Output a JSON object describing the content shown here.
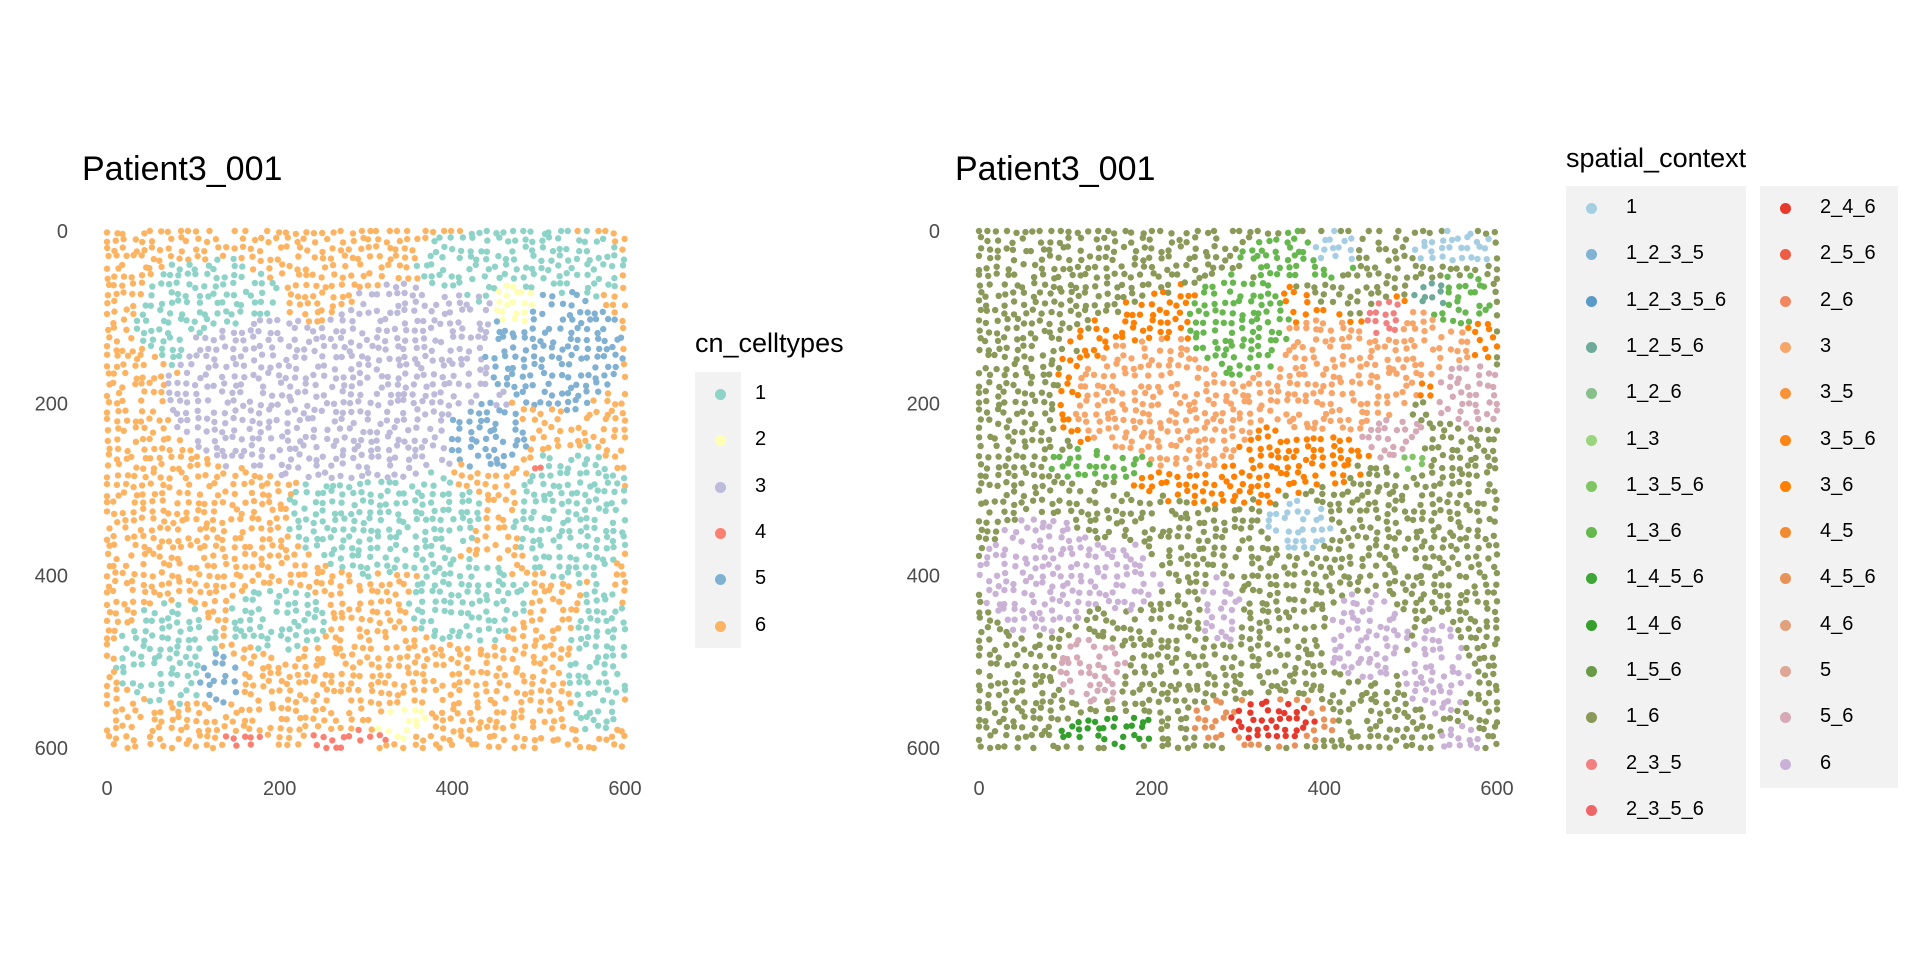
{
  "chart_data": [
    {
      "type": "scatter",
      "title": "Patient3_001",
      "xlabel": "",
      "ylabel": "",
      "xlim": [
        0,
        600
      ],
      "ylim": [
        600,
        0
      ],
      "y_reversed": true,
      "xticks": [
        "0",
        "200",
        "400",
        "600"
      ],
      "yticks": [
        "0",
        "200",
        "400",
        "600"
      ],
      "grid": false,
      "legend_title": "cn_celltypes",
      "legend_position": "right",
      "legend": [
        {
          "label": "1",
          "color": "#8DD3C7"
        },
        {
          "label": "2",
          "color": "#FFFFB3"
        },
        {
          "label": "3",
          "color": "#BEBADA"
        },
        {
          "label": "4",
          "color": "#FB8072"
        },
        {
          "label": "5",
          "color": "#80B1D3"
        },
        {
          "label": "6",
          "color": "#FDB462"
        }
      ],
      "regions": [
        {
          "category": "6",
          "shape": "rect",
          "cx": 300,
          "cy": 300,
          "rx": 300,
          "ry": 300
        },
        {
          "category": "1",
          "shape": "ellipse",
          "cx": 120,
          "cy": 100,
          "rx": 90,
          "ry": 70
        },
        {
          "category": "1",
          "shape": "ellipse",
          "cx": 480,
          "cy": 40,
          "rx": 120,
          "ry": 50
        },
        {
          "category": "1",
          "shape": "ellipse",
          "cx": 320,
          "cy": 330,
          "rx": 110,
          "ry": 70
        },
        {
          "category": "1",
          "shape": "ellipse",
          "cx": 540,
          "cy": 330,
          "rx": 70,
          "ry": 80
        },
        {
          "category": "1",
          "shape": "ellipse",
          "cx": 70,
          "cy": 490,
          "rx": 60,
          "ry": 60
        },
        {
          "category": "1",
          "shape": "ellipse",
          "cx": 420,
          "cy": 430,
          "rx": 70,
          "ry": 50
        },
        {
          "category": "1",
          "shape": "ellipse",
          "cx": 200,
          "cy": 450,
          "rx": 60,
          "ry": 40
        },
        {
          "category": "1",
          "shape": "ellipse",
          "cx": 570,
          "cy": 500,
          "rx": 35,
          "ry": 90
        },
        {
          "category": "3",
          "shape": "ellipse",
          "cx": 190,
          "cy": 190,
          "rx": 120,
          "ry": 90
        },
        {
          "category": "3",
          "shape": "ellipse",
          "cx": 360,
          "cy": 160,
          "rx": 120,
          "ry": 100
        },
        {
          "category": "3",
          "shape": "ellipse",
          "cx": 280,
          "cy": 250,
          "rx": 150,
          "ry": 40
        },
        {
          "category": "5",
          "shape": "ellipse",
          "cx": 520,
          "cy": 140,
          "rx": 80,
          "ry": 70
        },
        {
          "category": "5",
          "shape": "ellipse",
          "cx": 440,
          "cy": 240,
          "rx": 50,
          "ry": 40
        },
        {
          "category": "5",
          "shape": "ellipse",
          "cx": 130,
          "cy": 520,
          "rx": 25,
          "ry": 30
        },
        {
          "category": "2",
          "shape": "ellipse",
          "cx": 470,
          "cy": 85,
          "rx": 25,
          "ry": 25
        },
        {
          "category": "2",
          "shape": "ellipse",
          "cx": 340,
          "cy": 570,
          "rx": 30,
          "ry": 20
        },
        {
          "category": "4",
          "shape": "ellipse",
          "cx": 280,
          "cy": 590,
          "rx": 50,
          "ry": 12
        },
        {
          "category": "4",
          "shape": "ellipse",
          "cx": 160,
          "cy": 590,
          "rx": 30,
          "ry": 10
        },
        {
          "category": "4",
          "shape": "ellipse",
          "cx": 500,
          "cy": 270,
          "rx": 10,
          "ry": 10
        }
      ]
    },
    {
      "type": "scatter",
      "title": "Patient3_001",
      "xlabel": "",
      "ylabel": "",
      "xlim": [
        0,
        600
      ],
      "ylim": [
        600,
        0
      ],
      "y_reversed": true,
      "xticks": [
        "0",
        "200",
        "400",
        "600"
      ],
      "yticks": [
        "0",
        "200",
        "400",
        "600"
      ],
      "grid": false,
      "legend_title": "spatial_context",
      "legend_position": "right",
      "legend": [
        {
          "label": "1",
          "color": "#A6CEE3"
        },
        {
          "label": "1_2_3_5",
          "color": "#80B2D4"
        },
        {
          "label": "1_2_3_5_6",
          "color": "#5A9AC8"
        },
        {
          "label": "1_2_5_6",
          "color": "#6EAA9A"
        },
        {
          "label": "1_2_6",
          "color": "#86C08A"
        },
        {
          "label": "1_3",
          "color": "#9AD47F"
        },
        {
          "label": "1_3_5_6",
          "color": "#80C565"
        },
        {
          "label": "1_3_6",
          "color": "#66B84E"
        },
        {
          "label": "1_4_5_6",
          "color": "#3EA536"
        },
        {
          "label": "1_4_6",
          "color": "#33A02C"
        },
        {
          "label": "1_5_6",
          "color": "#6A9A48"
        },
        {
          "label": "1_6",
          "color": "#8A9858"
        },
        {
          "label": "2_3_5",
          "color": "#F28080"
        },
        {
          "label": "2_3_5_6",
          "color": "#EE6667"
        },
        {
          "label": "2_4_6",
          "color": "#E6392B"
        },
        {
          "label": "2_5_6",
          "color": "#EC5D44"
        },
        {
          "label": "2_6",
          "color": "#F2865E"
        },
        {
          "label": "3",
          "color": "#F8A56A"
        },
        {
          "label": "3_5",
          "color": "#FA9338"
        },
        {
          "label": "3_5_6",
          "color": "#FF8516"
        },
        {
          "label": "3_6",
          "color": "#FF7F00"
        },
        {
          "label": "4_5",
          "color": "#F18A30"
        },
        {
          "label": "4_5_6",
          "color": "#E8925A"
        },
        {
          "label": "4_6",
          "color": "#E2A07C"
        },
        {
          "label": "5",
          "color": "#DDA695"
        },
        {
          "label": "5_6",
          "color": "#D5A9B5"
        },
        {
          "label": "6",
          "color": "#CAB2D6"
        }
      ],
      "regions": [
        {
          "category": "1_6",
          "shape": "rect",
          "cx": 300,
          "cy": 300,
          "rx": 300,
          "ry": 300
        },
        {
          "category": "3_6",
          "shape": "ellipse",
          "cx": 290,
          "cy": 190,
          "rx": 200,
          "ry": 130
        },
        {
          "category": "3_6",
          "shape": "ellipse",
          "cx": 520,
          "cy": 130,
          "rx": 80,
          "ry": 60
        },
        {
          "category": "3",
          "shape": "ellipse",
          "cx": 220,
          "cy": 200,
          "rx": 110,
          "ry": 80
        },
        {
          "category": "3",
          "shape": "ellipse",
          "cx": 400,
          "cy": 170,
          "rx": 110,
          "ry": 70
        },
        {
          "category": "3",
          "shape": "ellipse",
          "cx": 510,
          "cy": 130,
          "rx": 60,
          "ry": 40
        },
        {
          "category": "1_3_6",
          "shape": "ellipse",
          "cx": 300,
          "cy": 110,
          "rx": 60,
          "ry": 60
        },
        {
          "category": "1_3_6",
          "shape": "ellipse",
          "cx": 370,
          "cy": 30,
          "rx": 70,
          "ry": 30
        },
        {
          "category": "1_3_6",
          "shape": "ellipse",
          "cx": 140,
          "cy": 270,
          "rx": 60,
          "ry": 20
        },
        {
          "category": "1_3_6",
          "shape": "ellipse",
          "cx": 560,
          "cy": 80,
          "rx": 40,
          "ry": 30
        },
        {
          "category": "1",
          "shape": "ellipse",
          "cx": 410,
          "cy": 20,
          "rx": 30,
          "ry": 20
        },
        {
          "category": "1",
          "shape": "ellipse",
          "cx": 550,
          "cy": 20,
          "rx": 50,
          "ry": 20
        },
        {
          "category": "1",
          "shape": "ellipse",
          "cx": 370,
          "cy": 340,
          "rx": 40,
          "ry": 30
        },
        {
          "category": "2_3_5",
          "shape": "ellipse",
          "cx": 470,
          "cy": 100,
          "rx": 20,
          "ry": 20
        },
        {
          "category": "1_2_5_6",
          "shape": "ellipse",
          "cx": 520,
          "cy": 75,
          "rx": 25,
          "ry": 15
        },
        {
          "category": "5_6",
          "shape": "ellipse",
          "cx": 570,
          "cy": 190,
          "rx": 40,
          "ry": 40
        },
        {
          "category": "5_6",
          "shape": "ellipse",
          "cx": 480,
          "cy": 240,
          "rx": 40,
          "ry": 25
        },
        {
          "category": "5_6",
          "shape": "ellipse",
          "cx": 130,
          "cy": 510,
          "rx": 40,
          "ry": 40
        },
        {
          "category": "6",
          "shape": "ellipse",
          "cx": 70,
          "cy": 400,
          "rx": 70,
          "ry": 70
        },
        {
          "category": "6",
          "shape": "ellipse",
          "cx": 160,
          "cy": 400,
          "rx": 50,
          "ry": 40
        },
        {
          "category": "6",
          "shape": "ellipse",
          "cx": 450,
          "cy": 470,
          "rx": 50,
          "ry": 50
        },
        {
          "category": "6",
          "shape": "ellipse",
          "cx": 530,
          "cy": 510,
          "rx": 40,
          "ry": 50
        },
        {
          "category": "6",
          "shape": "ellipse",
          "cx": 280,
          "cy": 440,
          "rx": 25,
          "ry": 40
        },
        {
          "category": "6",
          "shape": "ellipse",
          "cx": 560,
          "cy": 590,
          "rx": 30,
          "ry": 15
        },
        {
          "category": "4_5_6",
          "shape": "ellipse",
          "cx": 330,
          "cy": 570,
          "rx": 90,
          "ry": 30
        },
        {
          "category": "2_4_6",
          "shape": "ellipse",
          "cx": 340,
          "cy": 570,
          "rx": 50,
          "ry": 25
        },
        {
          "category": "1_4_6",
          "shape": "ellipse",
          "cx": 150,
          "cy": 580,
          "rx": 60,
          "ry": 20
        },
        {
          "category": "1_3_5_6",
          "shape": "ellipse",
          "cx": 500,
          "cy": 270,
          "rx": 20,
          "ry": 15
        }
      ]
    }
  ]
}
